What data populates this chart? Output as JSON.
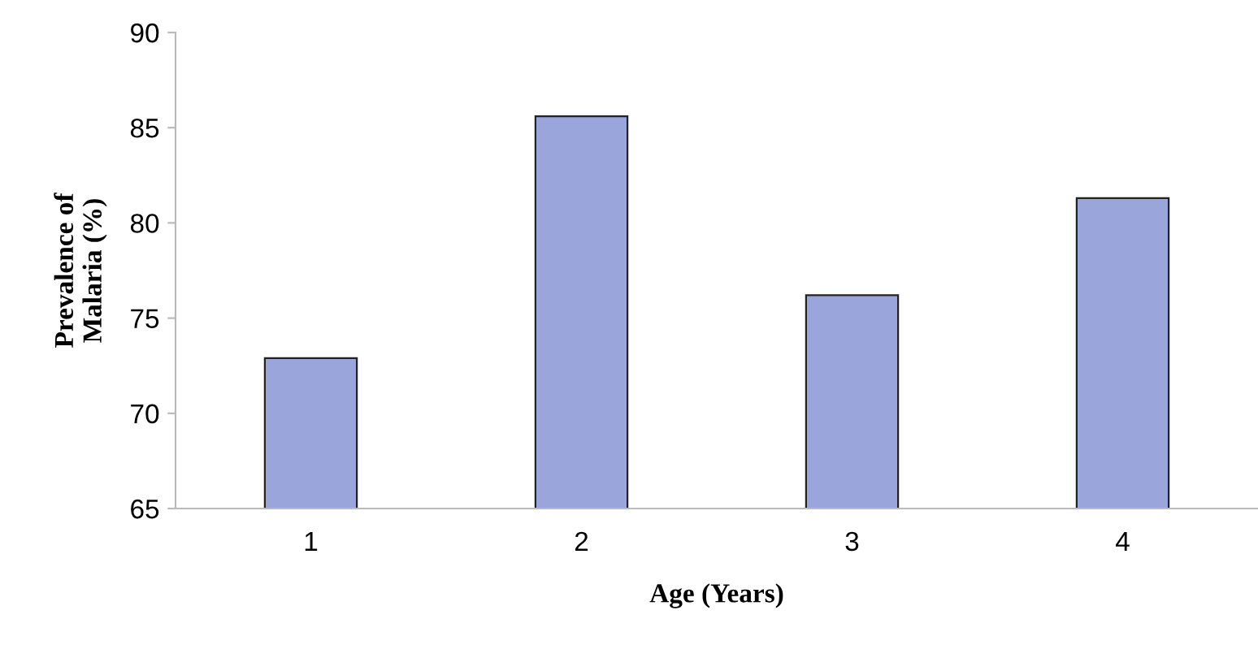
{
  "chart_data": {
    "type": "bar",
    "xlabel": "Age (Years)",
    "ylabel": "Prevalence of\nMalaria (%)",
    "categories": [
      "1",
      "2",
      "3",
      "4"
    ],
    "values": [
      72.9,
      85.6,
      76.2,
      81.3
    ],
    "color": "#9aa5dc",
    "ylim": [
      65,
      90
    ],
    "yticks": [
      65,
      70,
      75,
      80,
      85,
      90
    ],
    "grid": false,
    "legend": false
  }
}
